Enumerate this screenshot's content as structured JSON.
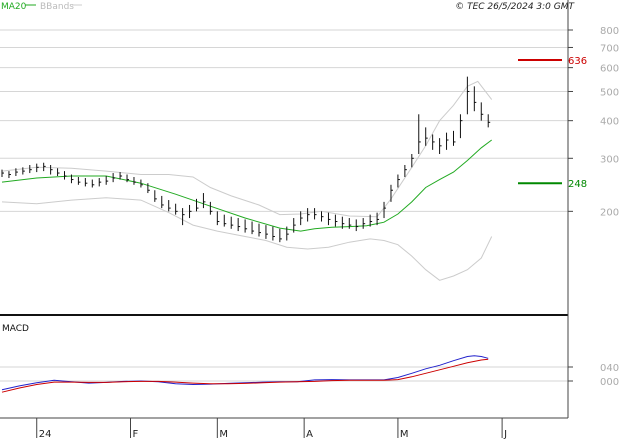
{
  "chart_data": [
    {
      "type": "line",
      "panel": "price",
      "ylim": [
        100,
        800
      ],
      "y_scale": "log",
      "y_ticks": [
        {
          "value": 200,
          "label": "200"
        },
        {
          "value": 300,
          "label": "300"
        },
        {
          "value": 400,
          "label": "400"
        },
        {
          "value": 500,
          "label": "500"
        },
        {
          "value": 600,
          "label": "600"
        },
        {
          "value": 700,
          "label": "700"
        },
        {
          "value": 800,
          "label": "800"
        }
      ],
      "x_range": [
        0,
        148
      ],
      "x_ticks": [
        {
          "x": 10,
          "label": "24"
        },
        {
          "x": 37,
          "label": "F"
        },
        {
          "x": 62,
          "label": "M"
        },
        {
          "x": 87,
          "label": "A"
        },
        {
          "x": 114,
          "label": "M"
        },
        {
          "x": 144,
          "label": "J"
        }
      ],
      "legend": {
        "ma_label": "MA20",
        "bb_label": "BBands",
        "ma_color": "#22aa22",
        "bb_color": "#cccccc"
      },
      "copyright": "© TEC 26/5/2024 3:0 GMT",
      "levels": [
        {
          "value": 636,
          "label": "636",
          "color": "#cc0000"
        },
        {
          "value": 248,
          "label": "248",
          "color": "#008800"
        }
      ],
      "price_bars": [
        [
          0,
          260,
          275,
          268
        ],
        [
          2,
          258,
          272,
          265
        ],
        [
          4,
          262,
          278,
          270
        ],
        [
          6,
          265,
          280,
          272
        ],
        [
          8,
          268,
          285,
          275
        ],
        [
          10,
          270,
          288,
          280
        ],
        [
          12,
          272,
          290,
          282
        ],
        [
          14,
          265,
          285,
          275
        ],
        [
          16,
          262,
          278,
          268
        ],
        [
          18,
          255,
          272,
          262
        ],
        [
          20,
          248,
          265,
          255
        ],
        [
          22,
          245,
          260,
          250
        ],
        [
          24,
          242,
          258,
          248
        ],
        [
          26,
          240,
          255,
          245
        ],
        [
          28,
          242,
          258,
          250
        ],
        [
          30,
          245,
          262,
          252
        ],
        [
          32,
          250,
          268,
          258
        ],
        [
          34,
          255,
          270,
          262
        ],
        [
          36,
          250,
          265,
          255
        ],
        [
          38,
          245,
          260,
          250
        ],
        [
          40,
          240,
          255,
          245
        ],
        [
          42,
          230,
          248,
          235
        ],
        [
          44,
          215,
          235,
          220
        ],
        [
          46,
          205,
          225,
          210
        ],
        [
          48,
          200,
          218,
          205
        ],
        [
          50,
          195,
          212,
          200
        ],
        [
          52,
          180,
          205,
          195
        ],
        [
          54,
          190,
          210,
          200
        ],
        [
          56,
          200,
          220,
          205
        ],
        [
          58,
          205,
          230,
          215
        ],
        [
          60,
          195,
          215,
          200
        ],
        [
          62,
          180,
          200,
          185
        ],
        [
          64,
          178,
          195,
          182
        ],
        [
          66,
          175,
          192,
          180
        ],
        [
          68,
          172,
          190,
          178
        ],
        [
          70,
          170,
          188,
          175
        ],
        [
          72,
          168,
          185,
          172
        ],
        [
          74,
          165,
          182,
          170
        ],
        [
          76,
          162,
          180,
          168
        ],
        [
          78,
          160,
          178,
          165
        ],
        [
          80,
          158,
          175,
          162
        ],
        [
          82,
          160,
          178,
          168
        ],
        [
          84,
          170,
          190,
          180
        ],
        [
          86,
          180,
          200,
          190
        ],
        [
          88,
          185,
          205,
          195
        ],
        [
          90,
          188,
          205,
          195
        ],
        [
          92,
          185,
          200,
          192
        ],
        [
          94,
          180,
          198,
          188
        ],
        [
          96,
          178,
          195,
          185
        ],
        [
          98,
          175,
          192,
          182
        ],
        [
          100,
          175,
          190,
          180
        ],
        [
          102,
          172,
          188,
          178
        ],
        [
          104,
          175,
          190,
          182
        ],
        [
          106,
          178,
          195,
          185
        ],
        [
          108,
          180,
          198,
          188
        ],
        [
          110,
          190,
          215,
          205
        ],
        [
          112,
          215,
          245,
          235
        ],
        [
          114,
          240,
          265,
          255
        ],
        [
          116,
          260,
          285,
          275
        ],
        [
          118,
          280,
          310,
          300
        ],
        [
          120,
          310,
          420,
          340
        ],
        [
          122,
          330,
          380,
          350
        ],
        [
          124,
          320,
          360,
          340
        ],
        [
          126,
          310,
          350,
          330
        ],
        [
          128,
          320,
          365,
          345
        ],
        [
          130,
          330,
          370,
          340
        ],
        [
          132,
          350,
          420,
          400
        ],
        [
          134,
          420,
          560,
          500
        ],
        [
          136,
          430,
          520,
          460
        ],
        [
          138,
          400,
          460,
          420
        ],
        [
          140,
          380,
          420,
          395
        ]
      ],
      "ma20": [
        [
          0,
          250
        ],
        [
          10,
          258
        ],
        [
          20,
          262
        ],
        [
          30,
          262
        ],
        [
          40,
          248
        ],
        [
          50,
          228
        ],
        [
          60,
          208
        ],
        [
          70,
          190
        ],
        [
          80,
          176
        ],
        [
          86,
          172
        ],
        [
          90,
          175
        ],
        [
          95,
          177
        ],
        [
          100,
          178
        ],
        [
          105,
          179
        ],
        [
          110,
          184
        ],
        [
          114,
          196
        ],
        [
          118,
          215
        ],
        [
          122,
          240
        ],
        [
          126,
          255
        ],
        [
          130,
          270
        ],
        [
          134,
          295
        ],
        [
          138,
          325
        ],
        [
          141,
          345
        ]
      ],
      "bb_upper": [
        [
          0,
          272
        ],
        [
          10,
          280
        ],
        [
          20,
          278
        ],
        [
          30,
          272
        ],
        [
          40,
          265
        ],
        [
          48,
          265
        ],
        [
          55,
          260
        ],
        [
          60,
          240
        ],
        [
          66,
          225
        ],
        [
          74,
          210
        ],
        [
          80,
          195
        ],
        [
          86,
          196
        ],
        [
          92,
          200
        ],
        [
          100,
          193
        ],
        [
          108,
          192
        ],
        [
          112,
          220
        ],
        [
          118,
          280
        ],
        [
          122,
          330
        ],
        [
          126,
          400
        ],
        [
          130,
          450
        ],
        [
          134,
          520
        ],
        [
          137,
          540
        ],
        [
          141,
          470
        ]
      ],
      "bb_lower": [
        [
          0,
          215
        ],
        [
          10,
          212
        ],
        [
          20,
          218
        ],
        [
          30,
          222
        ],
        [
          40,
          218
        ],
        [
          48,
          198
        ],
        [
          55,
          180
        ],
        [
          62,
          172
        ],
        [
          70,
          165
        ],
        [
          76,
          160
        ],
        [
          82,
          152
        ],
        [
          88,
          150
        ],
        [
          94,
          152
        ],
        [
          100,
          158
        ],
        [
          106,
          162
        ],
        [
          110,
          160
        ],
        [
          114,
          155
        ],
        [
          118,
          142
        ],
        [
          122,
          128
        ],
        [
          126,
          118
        ],
        [
          130,
          122
        ],
        [
          134,
          128
        ],
        [
          138,
          140
        ],
        [
          141,
          165
        ]
      ]
    },
    {
      "type": "line",
      "panel": "macd",
      "title": "MACD",
      "ylim": [
        -100,
        180
      ],
      "y_ticks": [
        {
          "value": 0,
          "label": "000"
        },
        {
          "value": 40,
          "label": "040"
        }
      ],
      "series": [
        {
          "role": "macd",
          "color": "#2222cc",
          "points": [
            [
              0,
              -25
            ],
            [
              5,
              -14
            ],
            [
              10,
              -5
            ],
            [
              15,
              2
            ],
            [
              20,
              -2
            ],
            [
              25,
              -6
            ],
            [
              30,
              -4
            ],
            [
              35,
              -1
            ],
            [
              40,
              0
            ],
            [
              45,
              -2
            ],
            [
              50,
              -8
            ],
            [
              55,
              -10
            ],
            [
              60,
              -9
            ],
            [
              65,
              -7
            ],
            [
              70,
              -5
            ],
            [
              75,
              -3
            ],
            [
              80,
              -2
            ],
            [
              85,
              -2
            ],
            [
              90,
              3
            ],
            [
              95,
              4
            ],
            [
              100,
              3
            ],
            [
              105,
              3
            ],
            [
              110,
              3
            ],
            [
              114,
              10
            ],
            [
              118,
              22
            ],
            [
              122,
              35
            ],
            [
              126,
              45
            ],
            [
              130,
              58
            ],
            [
              134,
              70
            ],
            [
              136,
              72
            ],
            [
              138,
              70
            ],
            [
              140,
              65
            ]
          ]
        },
        {
          "role": "signal",
          "color": "#cc0000",
          "points": [
            [
              0,
              -32
            ],
            [
              5,
              -20
            ],
            [
              10,
              -10
            ],
            [
              15,
              -3
            ],
            [
              20,
              -3
            ],
            [
              25,
              -4
            ],
            [
              30,
              -4
            ],
            [
              35,
              -2
            ],
            [
              40,
              -1
            ],
            [
              45,
              -1
            ],
            [
              50,
              -3
            ],
            [
              55,
              -6
            ],
            [
              60,
              -8
            ],
            [
              65,
              -8
            ],
            [
              70,
              -7
            ],
            [
              75,
              -5
            ],
            [
              80,
              -3
            ],
            [
              85,
              -2
            ],
            [
              90,
              -1
            ],
            [
              95,
              1
            ],
            [
              100,
              2
            ],
            [
              105,
              2
            ],
            [
              110,
              2
            ],
            [
              114,
              4
            ],
            [
              118,
              12
            ],
            [
              122,
              22
            ],
            [
              126,
              32
            ],
            [
              130,
              42
            ],
            [
              134,
              52
            ],
            [
              138,
              60
            ],
            [
              140,
              62
            ]
          ]
        }
      ]
    }
  ]
}
